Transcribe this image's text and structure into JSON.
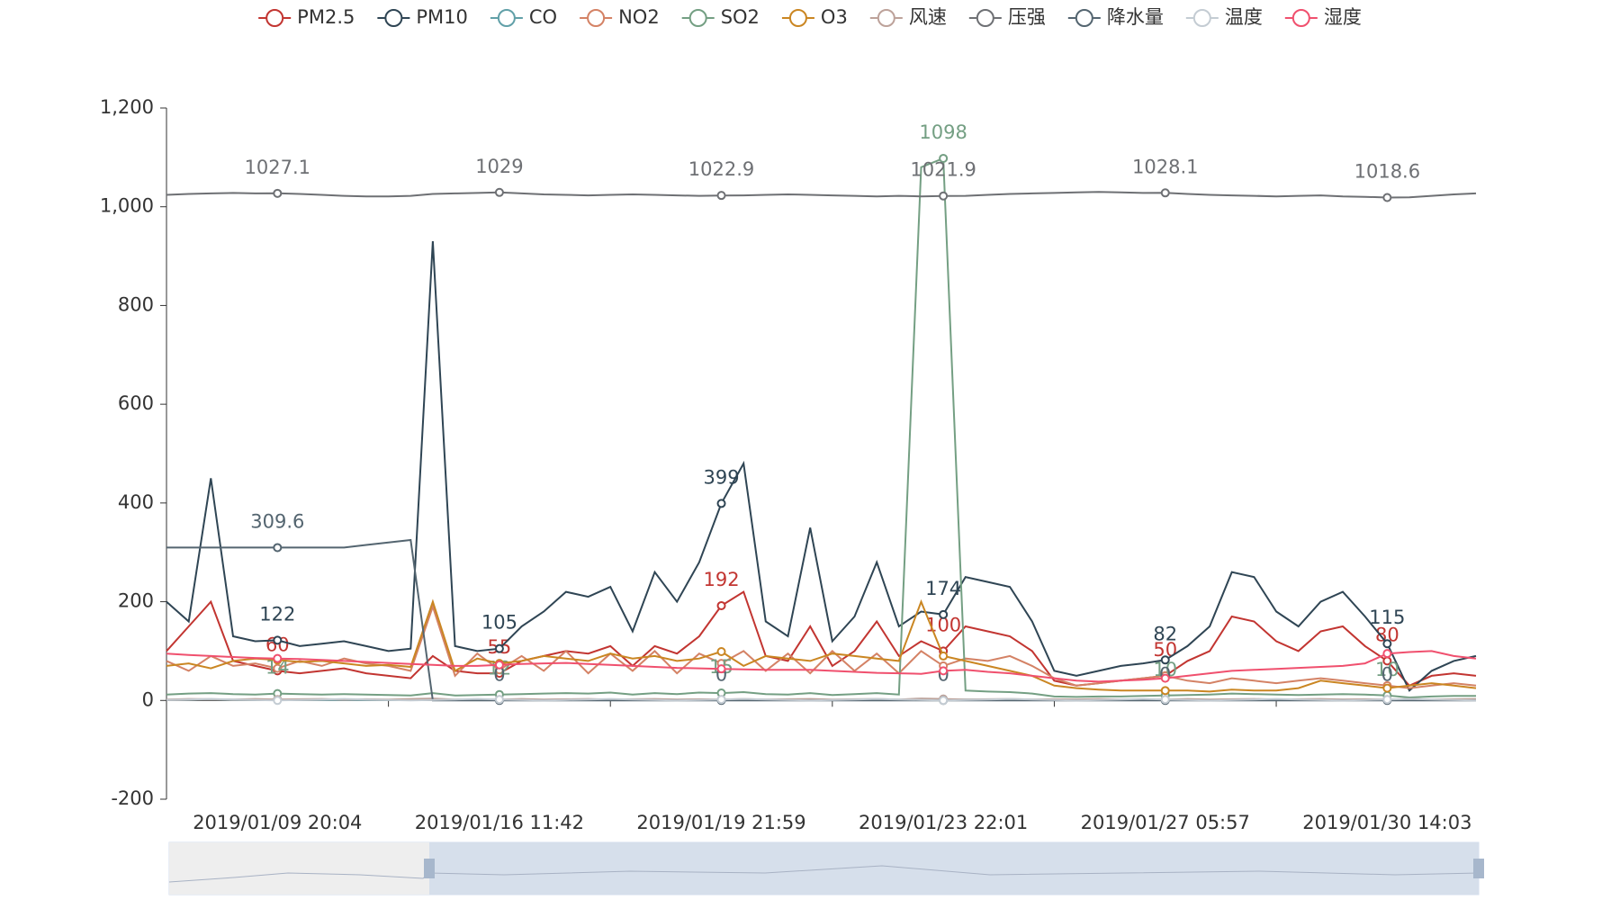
{
  "chart_data": {
    "type": "line",
    "categories": [
      null,
      null,
      null,
      null,
      null,
      "2019/01/09 20:04",
      null,
      null,
      null,
      null,
      null,
      null,
      null,
      null,
      null,
      "2019/01/16 11:42",
      null,
      null,
      null,
      null,
      null,
      null,
      null,
      null,
      null,
      "2019/01/19 21:59",
      null,
      null,
      null,
      null,
      null,
      null,
      null,
      null,
      null,
      "2019/01/23 22:01",
      null,
      null,
      null,
      null,
      null,
      null,
      null,
      null,
      null,
      "2019/01/27 05:57",
      null,
      null,
      null,
      null,
      null,
      null,
      null,
      null,
      null,
      "2019/01/30 14:03",
      null,
      null,
      null,
      null
    ],
    "ylim": [
      -200,
      1200
    ],
    "yticks": [
      -200,
      0,
      200,
      400,
      600,
      800,
      {
        "value": 1000,
        "label": "1,000"
      },
      {
        "value": 1200,
        "label": "1,200"
      }
    ],
    "series": [
      {
        "name": "PM2.5",
        "color": "#c23531",
        "label": true,
        "values": [
          100,
          150,
          200,
          80,
          70,
          60,
          55,
          60,
          65,
          55,
          50,
          45,
          90,
          60,
          55,
          55,
          80,
          90,
          100,
          95,
          110,
          70,
          110,
          95,
          130,
          192,
          220,
          90,
          80,
          150,
          70,
          100,
          160,
          90,
          120,
          100,
          150,
          140,
          130,
          100,
          40,
          30,
          35,
          40,
          45,
          50,
          80,
          100,
          170,
          160,
          120,
          100,
          140,
          150,
          110,
          80,
          30,
          50,
          55,
          50
        ]
      },
      {
        "name": "PM10",
        "color": "#2f4554",
        "label": true,
        "values": [
          200,
          160,
          450,
          130,
          120,
          122,
          110,
          115,
          120,
          110,
          100,
          105,
          930,
          110,
          100,
          105,
          150,
          180,
          220,
          210,
          230,
          140,
          260,
          200,
          280,
          399,
          480,
          160,
          130,
          350,
          120,
          170,
          280,
          150,
          180,
          174,
          250,
          240,
          230,
          160,
          60,
          50,
          60,
          70,
          75,
          82,
          110,
          150,
          260,
          250,
          180,
          150,
          200,
          220,
          170,
          115,
          20,
          60,
          80,
          90
        ]
      },
      {
        "name": "CO",
        "color": "#61a0a8",
        "values": [
          1.5,
          1.8,
          2.5,
          1.4,
          1.3,
          1.9,
          1.2,
          1.3,
          1.4,
          1.2,
          1.1,
          1.0,
          1.5,
          1.1,
          1.0,
          0.9,
          1.2,
          1.4,
          1.6,
          1.5,
          1.7,
          1.1,
          1.8,
          1.4,
          1.9,
          0.8,
          2.4,
          1.3,
          1.1,
          1.9,
          1.0,
          1.3,
          1.8,
          1.2,
          1.5,
          1.4,
          1.9,
          1.8,
          1.7,
          1.2,
          0.6,
          0.5,
          0.6,
          0.6,
          0.7,
          0.8,
          1.0,
          1.3,
          2.0,
          1.9,
          1.5,
          1.3,
          1.6,
          1.7,
          1.4,
          1.1,
          0.5,
          0.7,
          0.8,
          0.8
        ]
      },
      {
        "name": "NO2",
        "color": "#d48265",
        "values": [
          80,
          60,
          90,
          70,
          75,
          65,
          80,
          70,
          85,
          75,
          70,
          60,
          190,
          50,
          95,
          62,
          90,
          60,
          100,
          55,
          95,
          60,
          100,
          55,
          95,
          75,
          100,
          60,
          95,
          55,
          100,
          60,
          95,
          55,
          100,
          70,
          85,
          80,
          90,
          70,
          45,
          30,
          35,
          40,
          45,
          50,
          40,
          35,
          45,
          40,
          35,
          40,
          45,
          40,
          35,
          30,
          25,
          30,
          35,
          30
        ]
      },
      {
        "name": "SO2",
        "color": "#749f83",
        "label": true,
        "values": [
          12,
          14,
          15,
          13,
          12,
          14,
          13,
          12,
          13,
          12,
          11,
          10,
          15,
          10,
          11,
          12,
          13,
          14,
          15,
          14,
          16,
          12,
          15,
          13,
          16,
          15,
          17,
          13,
          12,
          15,
          11,
          13,
          15,
          12,
          1080,
          1098,
          20,
          18,
          17,
          14,
          8,
          7,
          8,
          8,
          9,
          10,
          11,
          12,
          14,
          13,
          12,
          11,
          12,
          13,
          12,
          10,
          6,
          8,
          9,
          9
        ]
      },
      {
        "name": "O3",
        "color": "#ca8622",
        "values": [
          70,
          75,
          65,
          80,
          85,
          82,
          78,
          80,
          75,
          70,
          72,
          68,
          200,
          60,
          85,
          75,
          80,
          90,
          85,
          80,
          95,
          85,
          90,
          80,
          85,
          99,
          70,
          90,
          85,
          80,
          95,
          90,
          85,
          80,
          200,
          90,
          80,
          70,
          60,
          50,
          30,
          25,
          22,
          20,
          20,
          20,
          20,
          18,
          22,
          20,
          20,
          25,
          40,
          35,
          30,
          25,
          30,
          35,
          30,
          25
        ]
      },
      {
        "name": "风速",
        "color": "#bda29a",
        "values": [
          2,
          3,
          2.5,
          2,
          3,
          2,
          2.5,
          3,
          2,
          2.5,
          2,
          3,
          4,
          2,
          2.5,
          2,
          3,
          2,
          2.5,
          3,
          2,
          2.5,
          3,
          2,
          2.5,
          2,
          3,
          2,
          2.5,
          3,
          2,
          2.5,
          3,
          2,
          4,
          3,
          2,
          2.5,
          3,
          2,
          2.5,
          2,
          3,
          2,
          2.5,
          2,
          3,
          2,
          2.5,
          3,
          2,
          2.5,
          3,
          2,
          2.5,
          2,
          3,
          2,
          2.5,
          3
        ]
      },
      {
        "name": "压强",
        "color": "#6e7074",
        "label": true,
        "values": [
          1024,
          1026,
          1027,
          1028,
          1027,
          1027.1,
          1026,
          1024,
          1022,
          1021,
          1021,
          1022,
          1026,
          1027,
          1028,
          1029,
          1027,
          1025,
          1024,
          1023,
          1024,
          1025,
          1024,
          1023,
          1022,
          1022.9,
          1023,
          1024,
          1025,
          1024,
          1023,
          1022,
          1021,
          1022,
          1021,
          1021.9,
          1022,
          1024,
          1026,
          1027,
          1028,
          1029,
          1030,
          1029,
          1028,
          1028.1,
          1026,
          1024,
          1023,
          1022,
          1021,
          1022,
          1023,
          1021,
          1020,
          1018.6,
          1019,
          1022,
          1025,
          1027
        ]
      },
      {
        "name": "降水量",
        "color": "#546570",
        "label": true,
        "values": [
          309.6,
          309.6,
          309.6,
          309.6,
          309.6,
          309.6,
          309.6,
          309.6,
          309.6,
          315,
          320,
          325,
          0,
          0,
          0,
          0,
          0,
          0,
          0,
          0,
          0,
          0,
          0,
          0,
          0,
          0,
          0,
          0,
          0,
          0,
          0,
          0,
          0,
          0,
          0,
          0,
          0,
          0,
          0,
          0,
          0,
          0,
          0,
          0,
          0,
          0,
          0,
          0,
          0,
          0,
          0,
          0,
          0,
          0,
          0,
          0,
          0,
          0,
          0,
          0
        ]
      },
      {
        "name": "温度",
        "color": "#c4ccd3",
        "values": [
          1,
          2,
          3,
          2,
          1,
          0,
          1,
          2,
          3,
          2,
          1,
          0,
          1,
          2,
          3,
          2,
          1,
          0,
          1,
          2,
          3,
          2,
          1,
          0,
          1,
          2,
          3,
          2,
          1,
          0,
          1,
          2,
          3,
          2,
          1,
          0,
          1,
          2,
          3,
          2,
          1,
          0,
          1,
          2,
          3,
          2,
          1,
          0,
          1,
          2,
          3,
          2,
          1,
          0,
          1,
          2,
          3,
          2,
          1,
          0
        ]
      },
      {
        "name": "湿度",
        "color": "#f0506e",
        "values": [
          95,
          92,
          90,
          88,
          86,
          85,
          84,
          82,
          80,
          78,
          76,
          74,
          72,
          70,
          70,
          72,
          74,
          75,
          76,
          74,
          72,
          70,
          68,
          66,
          65,
          64,
          63,
          62,
          62,
          62,
          60,
          58,
          56,
          55,
          54,
          60,
          62,
          58,
          55,
          50,
          45,
          40,
          38,
          40,
          42,
          45,
          50,
          55,
          60,
          62,
          64,
          66,
          68,
          70,
          75,
          95,
          98,
          100,
          90,
          85
        ]
      }
    ]
  }
}
